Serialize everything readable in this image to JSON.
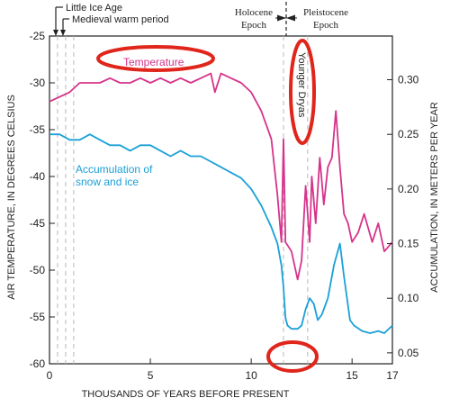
{
  "chart_data": {
    "type": "line",
    "title": "",
    "xlabel": "THOUSANDS OF YEARS BEFORE PRESENT",
    "ylabel_left": "AIR TEMPERATURE, IN DEGREES CELSIUS",
    "ylabel_right": "ACCUMULATION, IN METERS PER YEAR",
    "xlim": [
      0,
      17
    ],
    "ylim_left": [
      -60,
      -25
    ],
    "ylim_right": [
      0.04,
      0.34
    ],
    "x_ticks": [
      "0",
      "5",
      "10",
      "15",
      "17"
    ],
    "x_tick_values": [
      0,
      5,
      10,
      15,
      17
    ],
    "y_ticks_left": [
      "-25",
      "-30",
      "-35",
      "-40",
      "-45",
      "-50",
      "-55",
      "-60"
    ],
    "y_tick_values_left": [
      -25,
      -30,
      -35,
      -40,
      -45,
      -50,
      -55,
      -60
    ],
    "y_ticks_right": [
      "0.30",
      "0.25",
      "0.20",
      "0.15",
      "0.10",
      "0.05"
    ],
    "y_tick_values_right": [
      0.3,
      0.25,
      0.2,
      0.15,
      0.1,
      0.05
    ],
    "reference_lines_x": [
      0.4,
      0.8,
      1.2,
      11.6,
      12.8
    ],
    "series": [
      {
        "name": "Temperature",
        "color": "#d6338a",
        "axis": "left",
        "x": [
          0,
          0.5,
          1.0,
          1.5,
          2.0,
          2.5,
          3.0,
          3.5,
          4.0,
          4.5,
          5.0,
          5.5,
          6.0,
          6.5,
          7.0,
          7.5,
          8.0,
          8.2,
          8.5,
          9.0,
          9.5,
          10.0,
          10.5,
          11.0,
          11.3,
          11.5,
          11.6,
          11.7,
          12.0,
          12.3,
          12.5,
          12.7,
          12.9,
          13.0,
          13.2,
          13.4,
          13.6,
          13.8,
          14.0,
          14.2,
          14.4,
          14.6,
          14.8,
          15.0,
          15.3,
          15.6,
          16.0,
          16.3,
          16.6,
          17.0
        ],
        "y": [
          -32,
          -31.5,
          -31,
          -30,
          -30,
          -30,
          -29.5,
          -30,
          -30,
          -29.5,
          -30,
          -29.5,
          -30,
          -29.5,
          -30,
          -29.5,
          -29,
          -31,
          -29,
          -29.5,
          -30,
          -31,
          -33,
          -36,
          -42,
          -47,
          -36,
          -47,
          -48,
          -51,
          -49,
          -41,
          -47,
          -40,
          -45,
          -38,
          -43,
          -39,
          -38,
          -33,
          -39,
          -44,
          -45,
          -47,
          -46,
          -44,
          -47,
          -45,
          -48,
          -47
        ]
      },
      {
        "name": "Accumulation of snow and ice",
        "color": "#1aa0d8",
        "axis": "right",
        "x": [
          0,
          0.5,
          1.0,
          1.5,
          2.0,
          2.5,
          3.0,
          3.5,
          4.0,
          4.5,
          5.0,
          5.5,
          6.0,
          6.5,
          7.0,
          7.5,
          8.0,
          8.5,
          9.0,
          9.5,
          10.0,
          10.5,
          11.0,
          11.3,
          11.5,
          11.6,
          11.7,
          11.8,
          12.0,
          12.3,
          12.5,
          12.7,
          12.9,
          13.1,
          13.3,
          13.5,
          13.8,
          14.1,
          14.4,
          14.6,
          14.9,
          15.1,
          15.5,
          15.9,
          16.3,
          16.6,
          17.0
        ],
        "y": [
          0.25,
          0.25,
          0.245,
          0.245,
          0.25,
          0.245,
          0.24,
          0.24,
          0.235,
          0.24,
          0.24,
          0.235,
          0.23,
          0.235,
          0.23,
          0.23,
          0.225,
          0.22,
          0.215,
          0.21,
          0.2,
          0.185,
          0.165,
          0.15,
          0.13,
          0.11,
          0.082,
          0.075,
          0.072,
          0.072,
          0.075,
          0.09,
          0.1,
          0.095,
          0.08,
          0.085,
          0.1,
          0.13,
          0.15,
          0.12,
          0.08,
          0.075,
          0.07,
          0.068,
          0.07,
          0.068,
          0.075
        ]
      }
    ],
    "annotations": [
      {
        "text": "Little Ice Age",
        "color": "#222222"
      },
      {
        "text": "Medieval warm period",
        "color": "#222222"
      },
      {
        "text": "Holocene",
        "color": "#222222"
      },
      {
        "text": "Epoch",
        "color": "#222222"
      },
      {
        "text": "Pleistocene",
        "color": "#222222"
      },
      {
        "text": "Epoch",
        "color": "#222222"
      },
      {
        "text": "Temperature",
        "color": "#d6338a"
      },
      {
        "text": "Younger Dryas",
        "color": "#222222"
      },
      {
        "text": "Accumulation of",
        "color": "#1aa0d8"
      },
      {
        "text": "snow and ice",
        "color": "#1aa0d8"
      }
    ],
    "highlight_color": "#e0251b"
  }
}
